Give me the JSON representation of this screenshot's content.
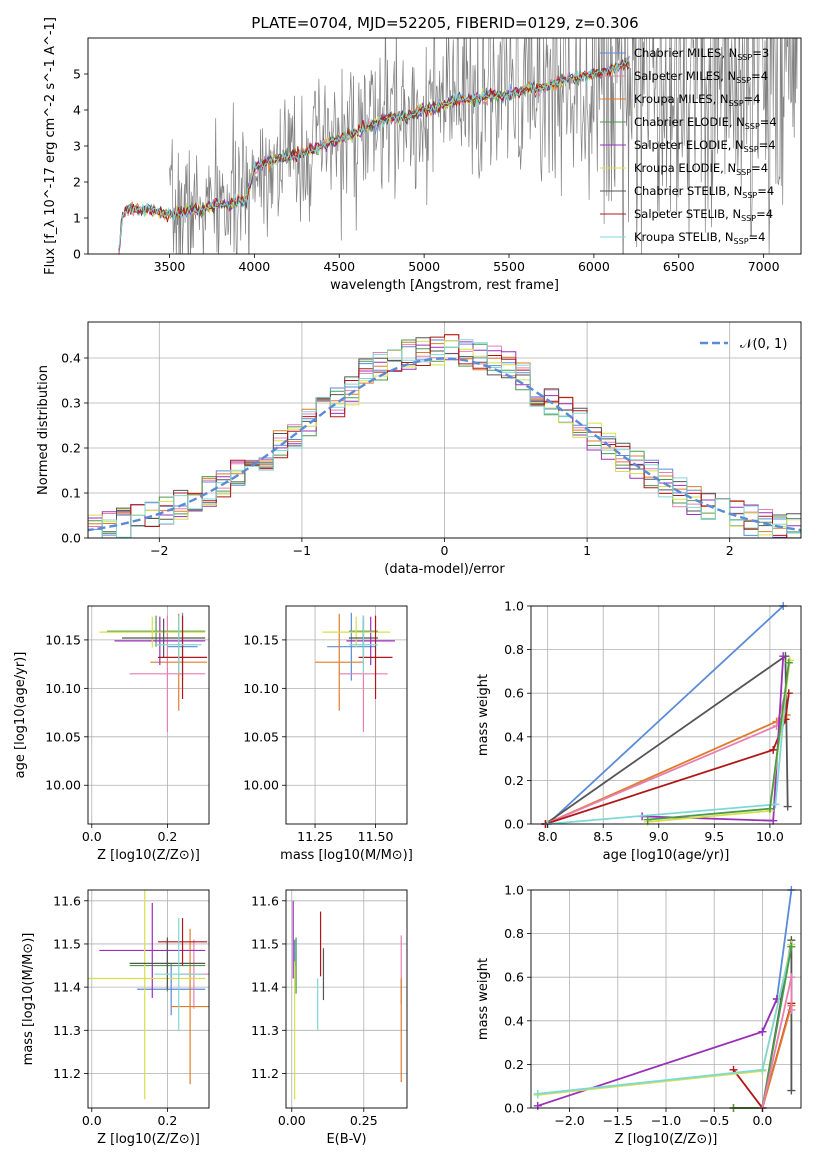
{
  "figure_title": "PLATE=0704, MJD=52205, FIBERID=0129, z=0.306",
  "colors": {
    "chabrier_miles": "#5b8bd8",
    "salpeter_miles": "#e87fb1",
    "kroupa_miles": "#e07b2b",
    "chabrier_elodie": "#4c9a4c",
    "salpeter_elodie": "#9b30b8",
    "kroupa_elodie": "#d6e04a",
    "chabrier_stelib": "#555555",
    "salpeter_stelib": "#b01818",
    "kroupa_stelib": "#7fd8d8",
    "data": "#808080",
    "normal": "#5b8bd8"
  },
  "chart_data": [
    {
      "id": "spectrum",
      "type": "line",
      "title": "PLATE=0704, MJD=52205, FIBERID=0129, z=0.306",
      "xlabel": "wavelength [Angstrom, rest frame]",
      "ylabel": "Flux [f_λ 10^-17 erg cm^-2 s^-1 A^-1]",
      "xlim": [
        3020,
        7220
      ],
      "ylim": [
        0,
        6
      ],
      "xticks": [
        3500,
        4000,
        4500,
        5000,
        5500,
        6000,
        6500,
        7000
      ],
      "yticks": [
        0,
        1,
        2,
        3,
        4,
        5
      ],
      "legend_position": "right",
      "legend": [
        {
          "label": "Chabrier MILES, N_SSP=3",
          "main": "Chabrier MILES, N",
          "sub": "SSP",
          "suffix": "=3",
          "color": "#5b8bd8"
        },
        {
          "label": "Salpeter MILES, N_SSP=4",
          "main": "Salpeter MILES, N",
          "sub": "SSP",
          "suffix": "=4",
          "color": "#e87fb1"
        },
        {
          "label": "Kroupa MILES, N_SSP=4",
          "main": "Kroupa MILES, N",
          "sub": "SSP",
          "suffix": "=4",
          "color": "#e07b2b"
        },
        {
          "label": "Chabrier ELODIE, N_SSP=4",
          "main": "Chabrier ELODIE, N",
          "sub": "SSP",
          "suffix": "=4",
          "color": "#4c9a4c"
        },
        {
          "label": "Salpeter ELODIE, N_SSP=4",
          "main": "Salpeter ELODIE, N",
          "sub": "SSP",
          "suffix": "=4",
          "color": "#9b30b8"
        },
        {
          "label": "Kroupa ELODIE, N_SSP=4",
          "main": "Kroupa ELODIE, N",
          "sub": "SSP",
          "suffix": "=4",
          "color": "#d6e04a"
        },
        {
          "label": "Chabrier STELIB, N_SSP=4",
          "main": "Chabrier STELIB, N",
          "sub": "SSP",
          "suffix": "=4",
          "color": "#555555"
        },
        {
          "label": "Salpeter STELIB, N_SSP=4",
          "main": "Salpeter STELIB, N",
          "sub": "SSP",
          "suffix": "=4",
          "color": "#b01818"
        },
        {
          "label": "Kroupa STELIB, N_SSP=4",
          "main": "Kroupa STELIB, N",
          "sub": "SSP",
          "suffix": "=4",
          "color": "#7fd8d8"
        }
      ],
      "continuum": {
        "x": [
          3200,
          3220,
          3240,
          3300,
          3400,
          3500,
          3600,
          3700,
          3800,
          3850,
          3900,
          3950,
          4000,
          4100,
          4200,
          4300,
          4400,
          4500,
          4600,
          4700,
          4800,
          4900,
          5000,
          5100,
          5200,
          5300,
          5400,
          5500,
          5600,
          5700,
          5800,
          5900,
          6000,
          6100,
          6200
        ],
        "y": [
          0,
          1.0,
          1.2,
          1.25,
          1.2,
          1.1,
          1.2,
          1.25,
          1.4,
          1.3,
          1.5,
          1.5,
          2.4,
          2.6,
          2.7,
          2.8,
          3.0,
          3.2,
          3.4,
          3.6,
          3.8,
          3.8,
          4.0,
          4.1,
          4.3,
          4.3,
          4.4,
          4.4,
          4.6,
          4.6,
          4.8,
          4.9,
          5.0,
          5.1,
          5.3
        ]
      },
      "data_range": [
        3500,
        7200
      ]
    },
    {
      "id": "residuals",
      "type": "line",
      "xlabel": "(data-model)/error",
      "ylabel": "Normed distribution",
      "xlim": [
        -2.5,
        2.5
      ],
      "ylim": [
        0,
        0.48
      ],
      "xticks": [
        -2,
        -1,
        0,
        1,
        2
      ],
      "yticks": [
        0.0,
        0.1,
        0.2,
        0.3,
        0.4
      ],
      "grid": true,
      "legend_position": "top-right",
      "legend": [
        {
          "label": "N(0,1)",
          "display": "𝒩(0, 1)",
          "color": "#5b8bd8",
          "style": "dashed"
        }
      ],
      "bin_width": 0.1,
      "series_note": "step histograms, one per model"
    },
    {
      "id": "age_vs_Z",
      "type": "scatter",
      "xlabel": "Z [log10(Z/Z⊙)]",
      "ylabel": "age [log10(age/yr)]",
      "xlim": [
        -0.01,
        0.31
      ],
      "ylim": [
        9.96,
        10.185
      ],
      "xticks": [
        0.0,
        0.2
      ],
      "yticks": [
        10.0,
        10.05,
        10.1,
        10.15
      ],
      "grid": true,
      "points": [
        {
          "x": 0.24,
          "xe": 0.04,
          "y": 10.143,
          "ye": 0.035,
          "color": "#5b8bd8"
        },
        {
          "x": 0.2,
          "xe": 0.1,
          "y": 10.115,
          "ye": 0.06,
          "color": "#e87fb1"
        },
        {
          "x": 0.23,
          "xe": 0.075,
          "y": 10.127,
          "ye": 0.05,
          "color": "#e07b2b"
        },
        {
          "x": 0.17,
          "xe": 0.13,
          "y": 10.159,
          "ye": 0.016,
          "color": "#4c9a4c"
        },
        {
          "x": 0.18,
          "xe": 0.12,
          "y": 10.149,
          "ye": 0.025,
          "color": "#9b30b8"
        },
        {
          "x": 0.16,
          "xe": 0.14,
          "y": 10.158,
          "ye": 0.016,
          "color": "#d6e04a"
        },
        {
          "x": 0.19,
          "xe": 0.11,
          "y": 10.152,
          "ye": 0.02,
          "color": "#555555"
        },
        {
          "x": 0.24,
          "xe": 0.065,
          "y": 10.132,
          "ye": 0.043,
          "color": "#b01818"
        },
        {
          "x": 0.23,
          "xe": 0.06,
          "y": 10.145,
          "ye": 0.03,
          "color": "#7fd8d8"
        }
      ]
    },
    {
      "id": "age_vs_mass",
      "type": "scatter",
      "xlabel": "mass [log10(M/M⊙)]",
      "xlim": [
        11.13,
        11.63
      ],
      "ylim": [
        9.96,
        10.185
      ],
      "xticks": [
        11.25,
        11.5
      ],
      "yticks": [
        10.0,
        10.05,
        10.1,
        10.15
      ],
      "grid": true,
      "points": [
        {
          "x": 11.4,
          "xe": 0.1,
          "y": 10.143,
          "ye": 0.035,
          "color": "#5b8bd8"
        },
        {
          "x": 11.45,
          "xe": 0.1,
          "y": 10.115,
          "ye": 0.06,
          "color": "#e87fb1"
        },
        {
          "x": 11.35,
          "xe": 0.1,
          "y": 10.127,
          "ye": 0.05,
          "color": "#e07b2b"
        },
        {
          "x": 11.45,
          "xe": 0.06,
          "y": 10.159,
          "ye": 0.016,
          "color": "#4c9a4c"
        },
        {
          "x": 11.48,
          "xe": 0.1,
          "y": 10.149,
          "ye": 0.025,
          "color": "#9b30b8"
        },
        {
          "x": 11.42,
          "xe": 0.14,
          "y": 10.158,
          "ye": 0.016,
          "color": "#d6e04a"
        },
        {
          "x": 11.45,
          "xe": 0.06,
          "y": 10.152,
          "ye": 0.02,
          "color": "#555555"
        },
        {
          "x": 11.5,
          "xe": 0.07,
          "y": 10.132,
          "ye": 0.043,
          "color": "#b01818"
        },
        {
          "x": 11.45,
          "xe": 0.06,
          "y": 10.145,
          "ye": 0.03,
          "color": "#7fd8d8"
        }
      ]
    },
    {
      "id": "weight_vs_age",
      "type": "line",
      "xlabel": "age [log10(age/yr)]",
      "ylabel": "mass weight",
      "xlim": [
        7.85,
        10.28
      ],
      "ylim": [
        0,
        1.0
      ],
      "xticks": [
        8.0,
        8.5,
        9.0,
        9.5,
        10.0
      ],
      "yticks": [
        0.0,
        0.2,
        0.4,
        0.6,
        0.8,
        1.0
      ],
      "grid": true,
      "series": [
        {
          "color": "#5b8bd8",
          "x": [
            8.0,
            10.12
          ],
          "y": [
            0.0,
            1.0
          ]
        },
        {
          "color": "#555555",
          "x": [
            7.98,
            10.14,
            10.16
          ],
          "y": [
            0.0,
            0.77,
            0.08
          ]
        },
        {
          "color": "#e07b2b",
          "x": [
            7.98,
            10.06,
            10.15
          ],
          "y": [
            0.0,
            0.47,
            0.5
          ]
        },
        {
          "color": "#e87fb1",
          "x": [
            7.98,
            10.06,
            10.14
          ],
          "y": [
            0.0,
            0.45,
            0.6
          ]
        },
        {
          "color": "#b01818",
          "x": [
            7.98,
            10.03,
            10.14,
            10.17
          ],
          "y": [
            0.0,
            0.34,
            0.48,
            0.6
          ]
        },
        {
          "color": "#9b30b8",
          "x": [
            8.85,
            10.03,
            10.12
          ],
          "y": [
            0.035,
            0.015,
            0.77
          ]
        },
        {
          "color": "#7fd8d8",
          "x": [
            8.0,
            10.05,
            10.17
          ],
          "y": [
            0.0,
            0.09,
            0.74
          ]
        },
        {
          "color": "#d6e04a",
          "x": [
            8.9,
            10.0,
            10.18
          ],
          "y": [
            0.01,
            0.06,
            0.75
          ]
        },
        {
          "color": "#4c9a4c",
          "x": [
            8.9,
            10.0,
            10.17
          ],
          "y": [
            0.02,
            0.07,
            0.74
          ]
        }
      ]
    },
    {
      "id": "mass_vs_Z",
      "type": "scatter",
      "xlabel": "Z [log10(Z/Z⊙)]",
      "ylabel": "mass [log10(M/M⊙)]",
      "xlim": [
        -0.01,
        0.31
      ],
      "ylim": [
        11.12,
        11.625
      ],
      "xticks": [
        0.0,
        0.2
      ],
      "yticks": [
        11.2,
        11.3,
        11.4,
        11.5,
        11.6
      ],
      "grid": true,
      "points": [
        {
          "x": 0.21,
          "xe": 0.09,
          "y": 11.395,
          "ye": 0.06,
          "color": "#5b8bd8"
        },
        {
          "x": 0.27,
          "xe": 0.04,
          "y": 11.43,
          "ye": 0.08,
          "color": "#e87fb1"
        },
        {
          "x": 0.26,
          "xe": 0.05,
          "y": 11.355,
          "ye": 0.18,
          "color": "#e07b2b"
        },
        {
          "x": 0.2,
          "xe": 0.1,
          "y": 11.45,
          "ye": 0.06,
          "color": "#4c9a4c"
        },
        {
          "x": 0.16,
          "xe": 0.14,
          "y": 11.485,
          "ye": 0.11,
          "color": "#9b30b8"
        },
        {
          "x": 0.14,
          "xe": 0.16,
          "y": 11.42,
          "ye": 0.28,
          "color": "#d6e04a"
        },
        {
          "x": 0.2,
          "xe": 0.1,
          "y": 11.455,
          "ye": 0.06,
          "color": "#555555"
        },
        {
          "x": 0.24,
          "xe": 0.065,
          "y": 11.505,
          "ye": 0.055,
          "color": "#b01818"
        },
        {
          "x": 0.23,
          "xe": 0.065,
          "y": 11.43,
          "ye": 0.13,
          "color": "#7fd8d8"
        }
      ]
    },
    {
      "id": "mass_vs_ebv",
      "type": "scatter",
      "xlabel": "E(B-V)",
      "xlim": [
        -0.02,
        0.4
      ],
      "ylim": [
        11.12,
        11.625
      ],
      "xticks": [
        0.0,
        0.25
      ],
      "yticks": [
        11.2,
        11.3,
        11.4,
        11.5,
        11.6
      ],
      "grid": true,
      "points": [
        {
          "x": 0.01,
          "y": 11.48,
          "ye": 0.03,
          "color": "#5b8bd8"
        },
        {
          "x": 0.38,
          "y": 11.44,
          "ye": 0.08,
          "color": "#e87fb1"
        },
        {
          "x": 0.38,
          "y": 11.3,
          "ye": 0.12,
          "color": "#e07b2b"
        },
        {
          "x": 0.015,
          "y": 11.45,
          "ye": 0.065,
          "color": "#4c9a4c"
        },
        {
          "x": 0.005,
          "y": 11.51,
          "ye": 0.09,
          "color": "#9b30b8"
        },
        {
          "x": 0.01,
          "y": 11.3,
          "ye": 0.16,
          "color": "#d6e04a"
        },
        {
          "x": 0.11,
          "y": 11.43,
          "ye": 0.06,
          "color": "#555555"
        },
        {
          "x": 0.1,
          "y": 11.5,
          "ye": 0.075,
          "color": "#b01818"
        },
        {
          "x": 0.09,
          "y": 11.36,
          "ye": 0.06,
          "color": "#7fd8d8"
        }
      ]
    },
    {
      "id": "weight_vs_Z",
      "type": "line",
      "xlabel": "Z [log10(Z/Z⊙)]",
      "ylabel": "mass weight",
      "xlim": [
        -2.4,
        0.4
      ],
      "ylim": [
        0,
        1.0
      ],
      "xticks": [
        -2.0,
        -1.5,
        -1.0,
        -0.5,
        0.0
      ],
      "yticks": [
        0.0,
        0.2,
        0.4,
        0.6,
        0.8,
        1.0
      ],
      "grid": true,
      "series": [
        {
          "color": "#5b8bd8",
          "x": [
            0.0,
            0.15,
            0.3
          ],
          "y": [
            0.35,
            0.5,
            1.0
          ]
        },
        {
          "color": "#9b30b8",
          "x": [
            -2.33,
            0.0,
            0.15
          ],
          "y": [
            0.01,
            0.35,
            0.5
          ]
        },
        {
          "color": "#b01818",
          "x": [
            -0.3,
            0.0,
            0.3
          ],
          "y": [
            0.175,
            0.0,
            0.48
          ]
        },
        {
          "color": "#e07b2b",
          "x": [
            -0.3,
            0.0,
            0.3
          ],
          "y": [
            0.0,
            0.0,
            0.47
          ]
        },
        {
          "color": "#555555",
          "x": [
            0.0,
            0.3,
            0.3
          ],
          "y": [
            0.0,
            0.77,
            0.08
          ]
        },
        {
          "color": "#d6e04a",
          "x": [
            -2.33,
            0.0,
            0.3
          ],
          "y": [
            0.06,
            0.17,
            0.75
          ]
        },
        {
          "color": "#7fd8d8",
          "x": [
            -2.33,
            0.0,
            0.3
          ],
          "y": [
            0.065,
            0.175,
            0.74
          ]
        },
        {
          "color": "#4c9a4c",
          "x": [
            -0.3,
            0.0,
            0.3
          ],
          "y": [
            0.0,
            0.0,
            0.74
          ]
        },
        {
          "color": "#e87fb1",
          "x": [
            0.0,
            0.3,
            0.3
          ],
          "y": [
            0.0,
            0.6,
            0.45
          ]
        }
      ]
    }
  ]
}
